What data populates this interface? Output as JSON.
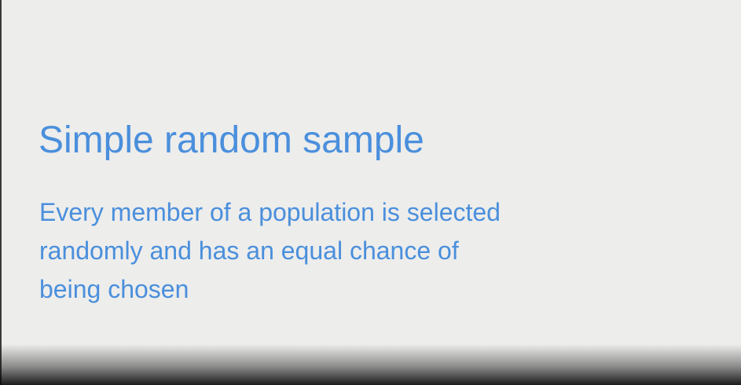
{
  "slide": {
    "title": "Simple random sample",
    "body_lines": [
      "Every member of a population is selected",
      "randomly and has an equal chance of",
      "being chosen"
    ],
    "text_color": "#4a8fdc",
    "background_color": "#ededec"
  }
}
